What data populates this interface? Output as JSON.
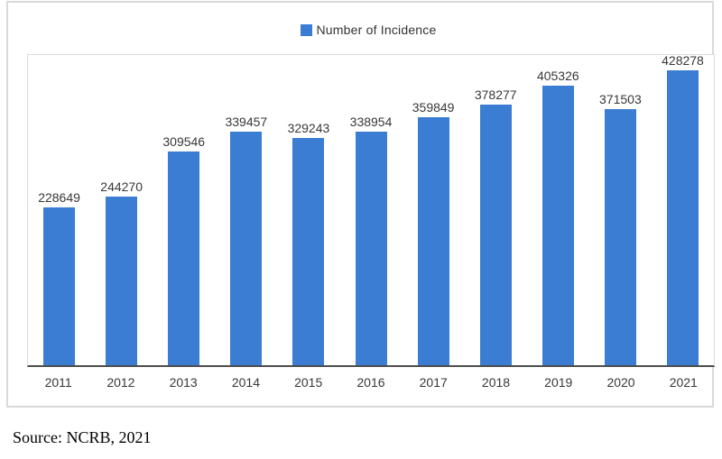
{
  "chart_data": {
    "type": "bar",
    "title": "",
    "categories": [
      "2011",
      "2012",
      "2013",
      "2014",
      "2015",
      "2016",
      "2017",
      "2018",
      "2019",
      "2020",
      "2021"
    ],
    "values": [
      228649,
      244270,
      309546,
      339457,
      329243,
      338954,
      359849,
      378277,
      405326,
      371503,
      428278
    ],
    "xlabel": "",
    "ylabel": "",
    "ylim": [
      0,
      450000
    ],
    "grid": false,
    "data_labels": true,
    "legend_position": "top-center",
    "legend_entries": [
      "Number of Incidence"
    ],
    "bar_color": "#3a7dd2",
    "axis_line_color": "#4d4d4d"
  },
  "legend": {
    "label": "Number of Incidence",
    "swatch_color": "#3a7dd2"
  },
  "source_note": "Source: NCRB, 2021"
}
